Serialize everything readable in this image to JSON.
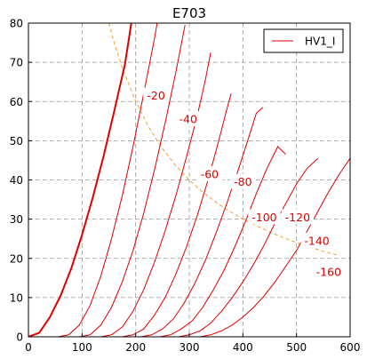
{
  "chart_data": {
    "type": "line",
    "title": "E703",
    "xlabel": "",
    "ylabel": "",
    "xlim": [
      0,
      600
    ],
    "ylim": [
      0,
      80
    ],
    "x_ticks": [
      0,
      100,
      200,
      300,
      400,
      500,
      600
    ],
    "y_ticks": [
      0,
      10,
      20,
      30,
      40,
      50,
      60,
      70,
      80
    ],
    "grid": true,
    "grid_style": "dashed",
    "legend": {
      "position": "top-right",
      "entries": [
        "HV1_I"
      ]
    },
    "colors": {
      "curves": "#dd0000",
      "power_limit": "#f0a030",
      "grid": "#999999",
      "axes": "#000000"
    },
    "series": [
      {
        "name": "HV1_I",
        "grid_voltage": 0,
        "bold": true,
        "points": [
          [
            0,
            0
          ],
          [
            20,
            1
          ],
          [
            40,
            5
          ],
          [
            60,
            10.5
          ],
          [
            80,
            17.5
          ],
          [
            100,
            26
          ],
          [
            120,
            35.5
          ],
          [
            140,
            46
          ],
          [
            160,
            57.5
          ],
          [
            180,
            69.5
          ],
          [
            192,
            80
          ]
        ]
      },
      {
        "grid_voltage": -20,
        "label": "-20",
        "points": [
          [
            55,
            0
          ],
          [
            75,
            0.5
          ],
          [
            95,
            3
          ],
          [
            115,
            8
          ],
          [
            135,
            15.5
          ],
          [
            155,
            25
          ],
          [
            175,
            36
          ],
          [
            195,
            48.5
          ],
          [
            215,
            62
          ],
          [
            235,
            76
          ],
          [
            240,
            80
          ]
        ]
      },
      {
        "grid_voltage": -40,
        "label": "-40",
        "points": [
          [
            95,
            0
          ],
          [
            115,
            0.5
          ],
          [
            135,
            3
          ],
          [
            155,
            7.5
          ],
          [
            175,
            14
          ],
          [
            195,
            22
          ],
          [
            215,
            31.5
          ],
          [
            235,
            42.5
          ],
          [
            255,
            54.5
          ],
          [
            275,
            67.5
          ],
          [
            292,
            79.5
          ]
        ]
      },
      {
        "grid_voltage": -60,
        "label": "-60",
        "points": [
          [
            135,
            0
          ],
          [
            155,
            0.5
          ],
          [
            175,
            2.5
          ],
          [
            195,
            6.5
          ],
          [
            215,
            12
          ],
          [
            235,
            19
          ],
          [
            255,
            27
          ],
          [
            275,
            36
          ],
          [
            295,
            46
          ],
          [
            315,
            56.5
          ],
          [
            330,
            65.5
          ],
          [
            340,
            72.5
          ]
        ]
      },
      {
        "grid_voltage": -80,
        "label": "-80",
        "points": [
          [
            175,
            0
          ],
          [
            195,
            0.5
          ],
          [
            215,
            2
          ],
          [
            235,
            5.5
          ],
          [
            255,
            10
          ],
          [
            275,
            16
          ],
          [
            295,
            23
          ],
          [
            315,
            31
          ],
          [
            335,
            40
          ],
          [
            355,
            50
          ],
          [
            370,
            58
          ],
          [
            378,
            62
          ]
        ]
      },
      {
        "grid_voltage": -100,
        "label": "-100",
        "points": [
          [
            210,
            0
          ],
          [
            230,
            0.5
          ],
          [
            250,
            2
          ],
          [
            270,
            4.5
          ],
          [
            290,
            8.5
          ],
          [
            310,
            13.5
          ],
          [
            330,
            19.5
          ],
          [
            350,
            26.5
          ],
          [
            370,
            34
          ],
          [
            390,
            42
          ],
          [
            410,
            50.5
          ],
          [
            425,
            57
          ],
          [
            437,
            58.5
          ]
        ]
      },
      {
        "grid_voltage": -120,
        "label": "-120",
        "points": [
          [
            245,
            0
          ],
          [
            265,
            0.5
          ],
          [
            285,
            2
          ],
          [
            305,
            4
          ],
          [
            325,
            7.5
          ],
          [
            345,
            12
          ],
          [
            365,
            17
          ],
          [
            385,
            23
          ],
          [
            405,
            29.5
          ],
          [
            425,
            36.5
          ],
          [
            445,
            43
          ],
          [
            465,
            48.5
          ],
          [
            480,
            46.5
          ]
        ]
      },
      {
        "grid_voltage": -140,
        "label": "-140",
        "points": [
          [
            280,
            0
          ],
          [
            300,
            0.5
          ],
          [
            320,
            1.5
          ],
          [
            340,
            3.5
          ],
          [
            360,
            6.5
          ],
          [
            380,
            10
          ],
          [
            400,
            14
          ],
          [
            420,
            18.5
          ],
          [
            440,
            23.5
          ],
          [
            460,
            29
          ],
          [
            480,
            34
          ],
          [
            500,
            39
          ],
          [
            520,
            43
          ],
          [
            540,
            45.5
          ]
        ]
      },
      {
        "grid_voltage": -160,
        "label": "-160",
        "points": [
          [
            320,
            0
          ],
          [
            340,
            0.5
          ],
          [
            360,
            1.5
          ],
          [
            380,
            3
          ],
          [
            400,
            5
          ],
          [
            420,
            7.5
          ],
          [
            440,
            10.5
          ],
          [
            460,
            14
          ],
          [
            480,
            18
          ],
          [
            500,
            22
          ],
          [
            520,
            27
          ],
          [
            540,
            32
          ],
          [
            560,
            37
          ],
          [
            580,
            41.5
          ],
          [
            600,
            45.5
          ]
        ]
      }
    ],
    "power_limit_curve": {
      "style": "dashed",
      "points": [
        [
          150,
          80
        ],
        [
          160,
          75
        ],
        [
          175,
          68.6
        ],
        [
          200,
          60
        ],
        [
          225,
          53.3
        ],
        [
          250,
          48
        ],
        [
          275,
          43.6
        ],
        [
          300,
          40
        ],
        [
          325,
          36.9
        ],
        [
          350,
          34.3
        ],
        [
          375,
          32
        ],
        [
          400,
          30
        ],
        [
          450,
          26.7
        ],
        [
          500,
          24
        ],
        [
          550,
          21.8
        ],
        [
          580,
          20.7
        ]
      ]
    },
    "curve_labels": [
      {
        "text": "-20",
        "x": 238,
        "y": 61.5
      },
      {
        "text": "-40",
        "x": 298,
        "y": 55.5
      },
      {
        "text": "-60",
        "x": 338,
        "y": 41.5
      },
      {
        "text": "-80",
        "x": 400,
        "y": 39.5
      },
      {
        "text": "-100",
        "x": 440,
        "y": 30.5
      },
      {
        "text": "-120",
        "x": 502,
        "y": 30.5
      },
      {
        "text": "-140",
        "x": 538,
        "y": 24.5
      },
      {
        "text": "-160",
        "x": 560,
        "y": 16.5
      }
    ]
  }
}
